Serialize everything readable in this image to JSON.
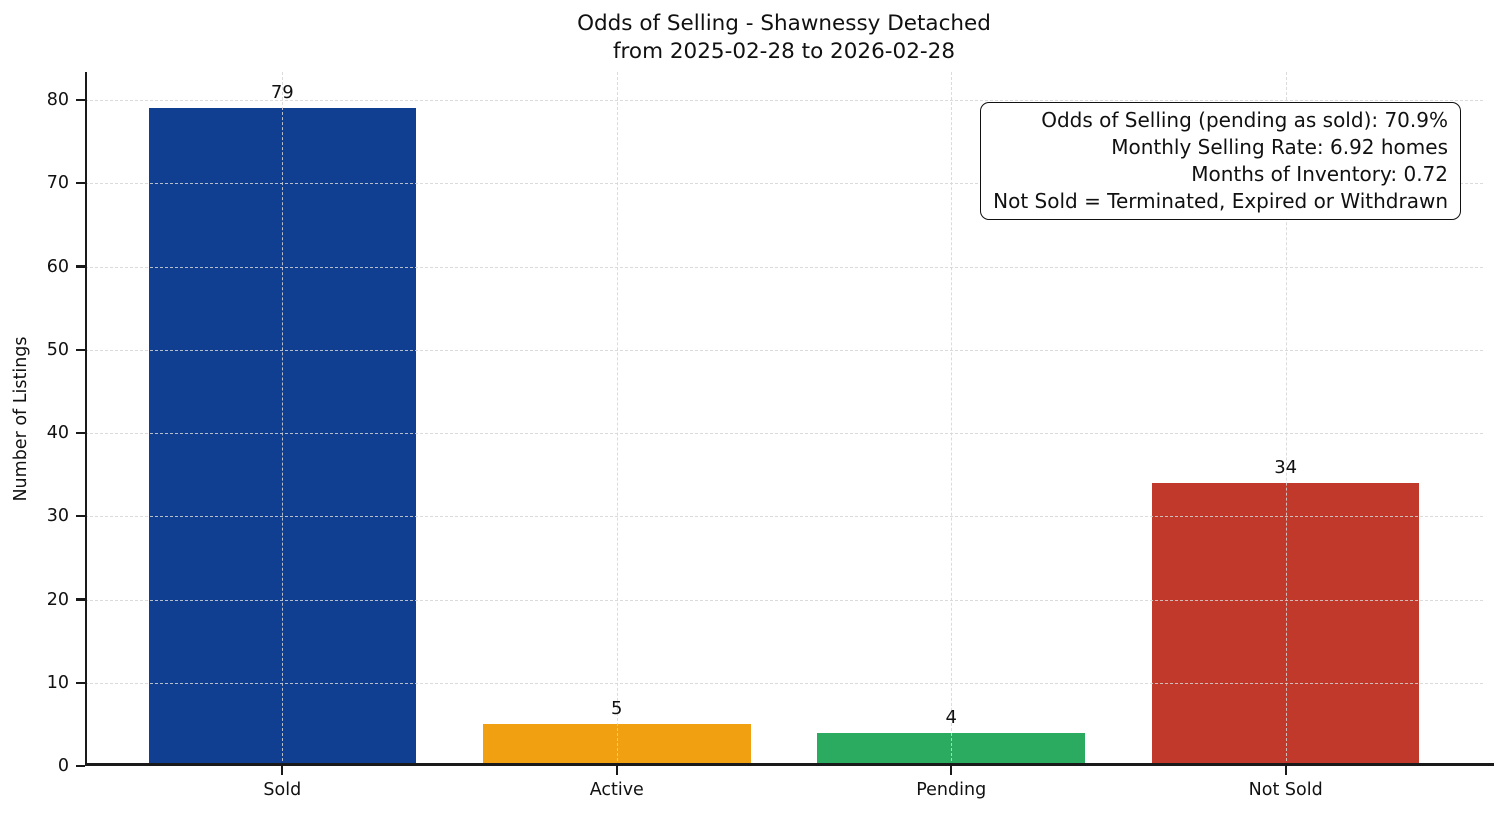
{
  "figure": {
    "background_color": "#ffffff",
    "axis_color": "#1a1a1a",
    "grid_color": "#d5d5d5"
  },
  "chart_data": {
    "type": "bar",
    "title": "Odds of Selling - Shawnessy Detached\nfrom 2025-02-28 to 2026-02-28",
    "title_lines": [
      "Odds of Selling - Shawnessy Detached",
      "from 2025-02-28 to 2026-02-28"
    ],
    "xlabel": "",
    "ylabel": "Number of Listings",
    "categories": [
      "Sold",
      "Active",
      "Pending",
      "Not Sold"
    ],
    "values": [
      79,
      5,
      4,
      34
    ],
    "value_labels": [
      "79",
      "5",
      "4",
      "34"
    ],
    "bar_colors": [
      "#103e91",
      "#f0a011",
      "#2aab5f",
      "#c0392b"
    ],
    "yticks": [
      0,
      10,
      20,
      30,
      40,
      50,
      60,
      70,
      80
    ],
    "ylim": [
      0,
      83.4
    ],
    "grid": true,
    "grid_style": "dashed",
    "legend_position": "none",
    "annotation_lines": [
      "Odds of Selling (pending as sold): 70.9%",
      "Monthly Selling Rate: 6.92 homes",
      "Months of Inventory: 0.72",
      "Not Sold = Terminated, Expired or Withdrawn"
    ]
  }
}
